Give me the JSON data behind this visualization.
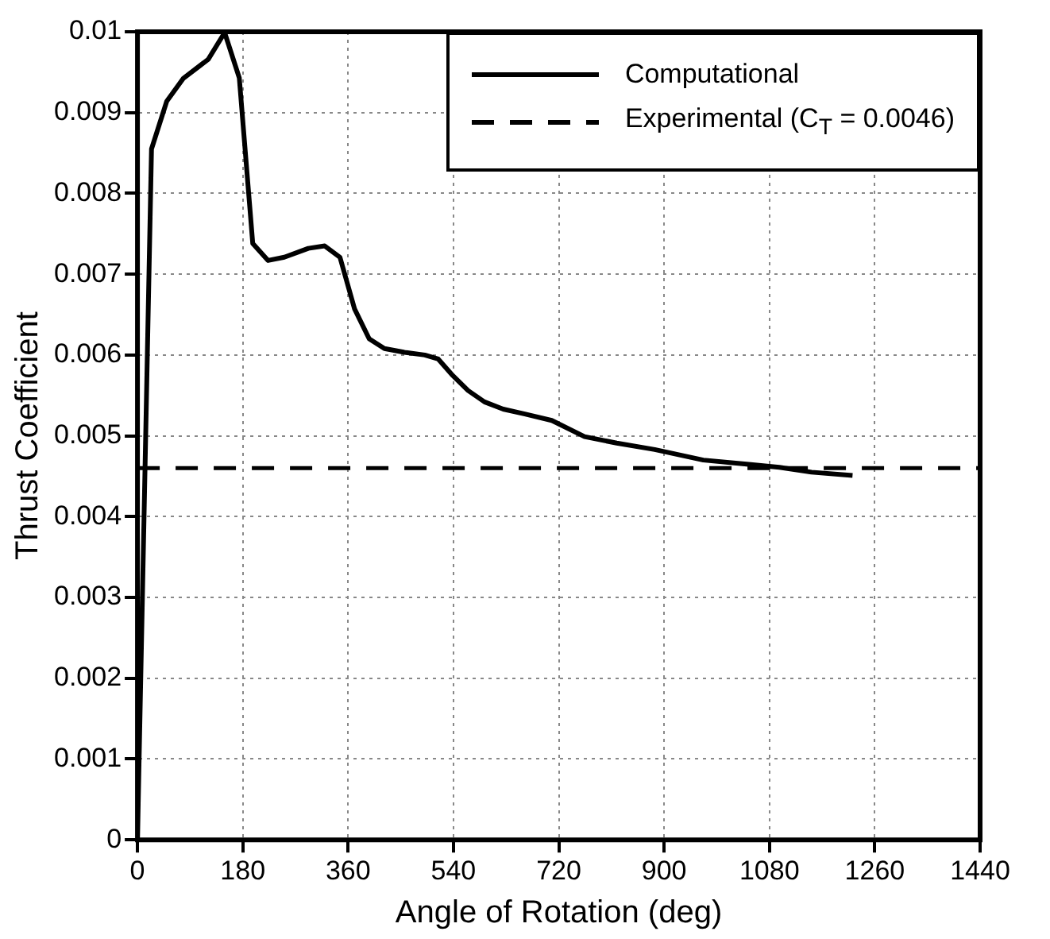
{
  "chart_data": {
    "type": "line",
    "xlabel": "Angle of Rotation (deg)",
    "ylabel": "Thrust Coefficient",
    "xlim": [
      0,
      1440
    ],
    "xticks": [
      0,
      180,
      360,
      540,
      720,
      900,
      1080,
      1260,
      1440
    ],
    "ylim": [
      0,
      0.01
    ],
    "yticks": [
      0,
      0.001,
      0.002,
      0.003,
      0.004,
      0.005,
      0.006,
      0.007,
      0.008,
      0.009,
      0.01
    ],
    "grid": true,
    "legend": "top right",
    "line_style": "solid",
    "marker": "none",
    "series": [
      {
        "name": "Computational",
        "color": "#000000",
        "x": [
          0,
          24,
          50,
          78,
          121,
          149,
          174,
          197,
          223,
          251,
          292,
          320,
          346,
          371,
          396,
          422,
          459,
          491,
          514,
          537,
          565,
          593,
          625,
          662,
          708,
          764,
          819,
          884,
          967,
          1041,
          1097,
          1152,
          1222
        ],
        "values": [
          0,
          0.00855,
          0.00914,
          0.00942,
          0.00966,
          0.00999,
          0.00943,
          0.00738,
          0.00717,
          0.00721,
          0.00732,
          0.00735,
          0.00721,
          0.00657,
          0.0062,
          0.00608,
          0.00603,
          0.006,
          0.00595,
          0.00576,
          0.00556,
          0.00542,
          0.00533,
          0.00527,
          0.00519,
          0.00499,
          0.00491,
          0.00483,
          0.0047,
          0.00465,
          0.00461,
          0.00455,
          0.00451
        ]
      }
    ],
    "ref_lines": [
      {
        "axis": "y",
        "value": 0.0046,
        "label": "Experimental (C$_{T}$ = 0.0046)",
        "color": "#000000",
        "line_style": "dashed"
      }
    ]
  }
}
